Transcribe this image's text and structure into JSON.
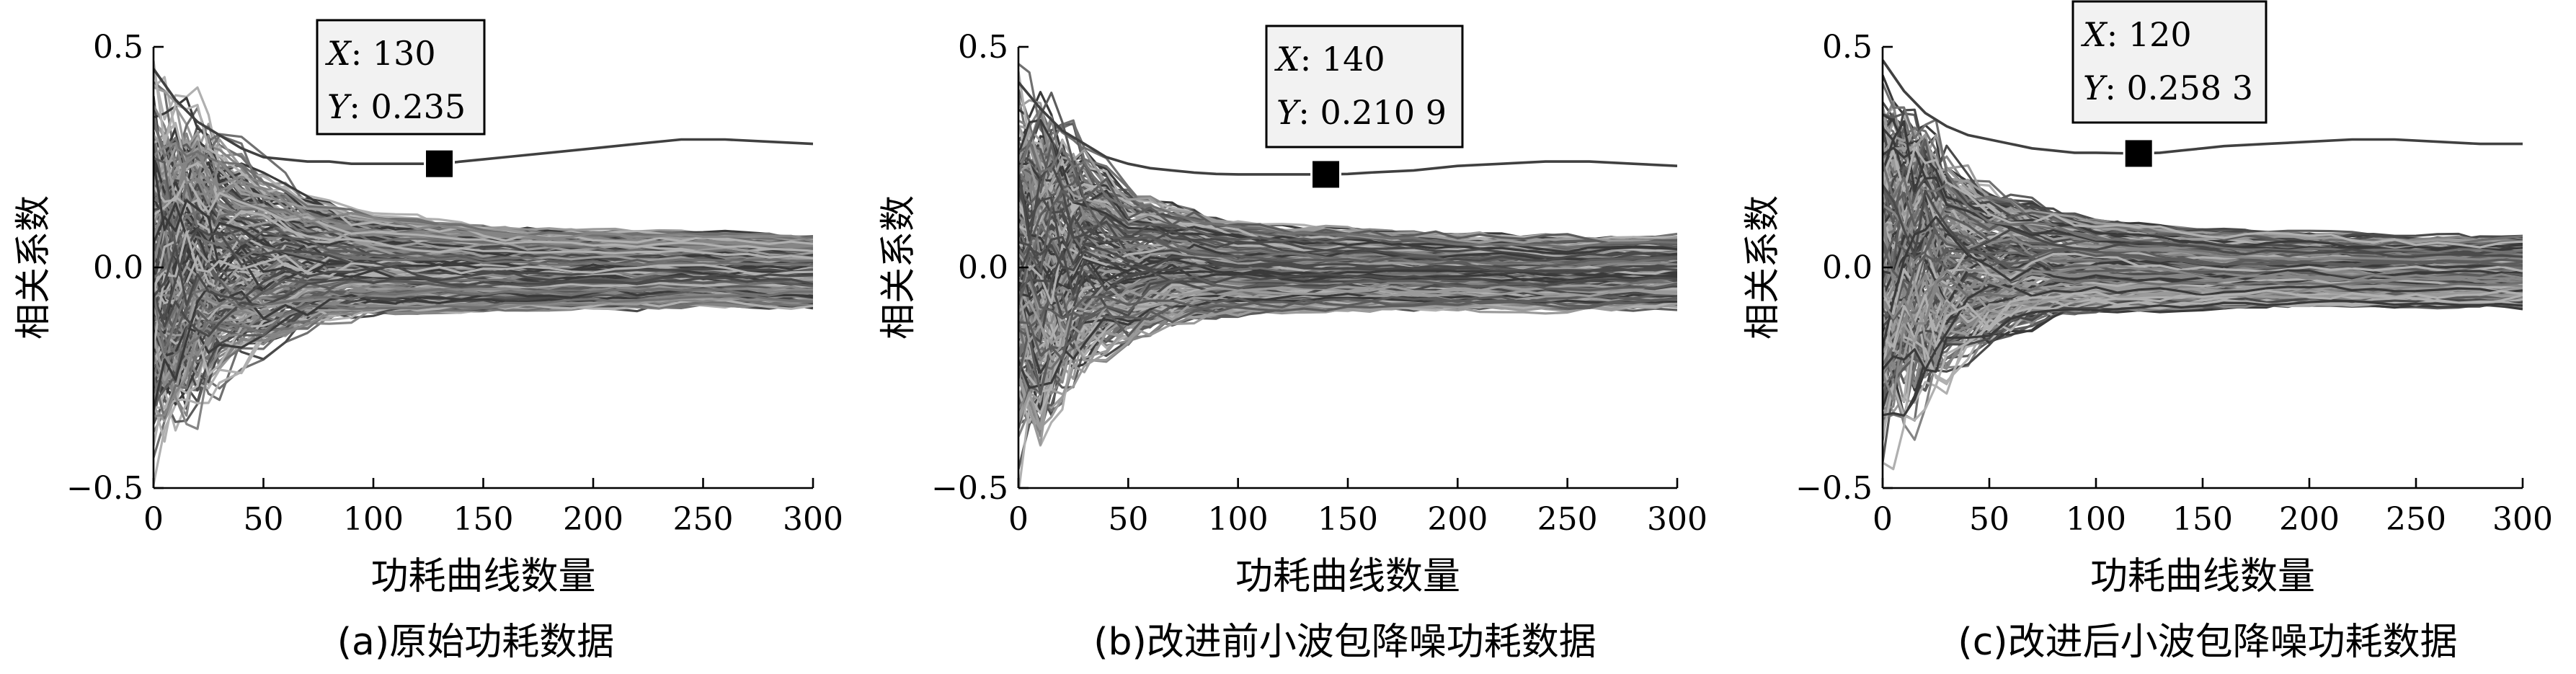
{
  "figure": {
    "panels": [
      {
        "caption": "(a)原始功耗数据",
        "ylabel": "相关系数",
        "xlabel": "功耗曲线数量",
        "annotation": {
          "x_label": "X",
          "x_value": "130",
          "y_label": "Y",
          "y_value": "0.235"
        }
      },
      {
        "caption": "(b)改进前小波包降噪功耗数据",
        "ylabel": "相关系数",
        "xlabel": "功耗曲线数量",
        "annotation": {
          "x_label": "X",
          "x_value": "140",
          "y_label": "Y",
          "y_value": "0.210 9"
        }
      },
      {
        "caption": "(c)改进后小波包降噪功耗数据",
        "ylabel": "相关系数",
        "xlabel": "功耗曲线数量",
        "annotation": {
          "x_label": "X",
          "x_value": "120",
          "y_label": "Y",
          "y_value": "0.258 3"
        }
      }
    ]
  },
  "chart_data": [
    {
      "type": "line",
      "xlabel": "功耗曲线数量",
      "ylabel": "相关系数",
      "xlim": [
        0,
        300
      ],
      "ylim": [
        -0.5,
        0.5
      ],
      "xticks": [
        0,
        50,
        100,
        150,
        200,
        250,
        300
      ],
      "yticks": [
        "0.5",
        "0.0",
        "−0.5"
      ],
      "yticks_values": [
        0.5,
        0.0,
        -0.5
      ],
      "grid": false,
      "series_count": 256,
      "series_colors": [
        "#3a3a3a",
        "#4a4a4a",
        "#5c5c5c",
        "#707070",
        "#858585",
        "#9a9a9a",
        "#b0b0b0"
      ],
      "highlight_series": {
        "x": [
          0,
          10,
          20,
          30,
          40,
          50,
          60,
          70,
          80,
          90,
          100,
          110,
          120,
          130,
          140,
          150,
          160,
          180,
          200,
          220,
          240,
          260,
          280,
          300
        ],
        "y": [
          0.45,
          0.38,
          0.33,
          0.3,
          0.27,
          0.25,
          0.245,
          0.24,
          0.24,
          0.235,
          0.235,
          0.235,
          0.235,
          0.235,
          0.24,
          0.245,
          0.25,
          0.26,
          0.27,
          0.28,
          0.29,
          0.29,
          0.285,
          0.28
        ]
      },
      "marker": {
        "x": 130,
        "y": 0.235
      },
      "envelope": {
        "x": [
          0,
          10,
          20,
          30,
          50,
          75,
          100,
          130,
          160,
          200,
          250,
          300
        ],
        "upper": [
          0.5,
          0.5,
          0.48,
          0.42,
          0.32,
          0.24,
          0.2,
          0.18,
          0.16,
          0.15,
          0.14,
          0.13
        ],
        "lower": [
          -0.5,
          -0.5,
          -0.45,
          -0.38,
          -0.3,
          -0.22,
          -0.19,
          -0.18,
          -0.17,
          -0.16,
          -0.15,
          -0.15
        ]
      }
    },
    {
      "type": "line",
      "xlabel": "功耗曲线数量",
      "ylabel": "相关系数",
      "xlim": [
        0,
        300
      ],
      "ylim": [
        -0.5,
        0.5
      ],
      "xticks": [
        0,
        50,
        100,
        150,
        200,
        250,
        300
      ],
      "yticks": [
        "0.5",
        "0.0",
        "−0.5"
      ],
      "yticks_values": [
        0.5,
        0.0,
        -0.5
      ],
      "grid": false,
      "series_count": 256,
      "series_colors": [
        "#3a3a3a",
        "#4a4a4a",
        "#5c5c5c",
        "#707070",
        "#858585",
        "#9a9a9a",
        "#b0b0b0"
      ],
      "highlight_series": {
        "x": [
          0,
          10,
          20,
          30,
          40,
          50,
          60,
          70,
          80,
          90,
          100,
          110,
          120,
          130,
          140,
          150,
          160,
          180,
          200,
          220,
          240,
          260,
          280,
          300
        ],
        "y": [
          0.42,
          0.36,
          0.31,
          0.28,
          0.25,
          0.235,
          0.225,
          0.22,
          0.215,
          0.212,
          0.211,
          0.211,
          0.211,
          0.211,
          0.2109,
          0.212,
          0.215,
          0.22,
          0.23,
          0.235,
          0.24,
          0.24,
          0.235,
          0.23
        ]
      },
      "marker": {
        "x": 140,
        "y": 0.2109
      },
      "envelope": {
        "x": [
          0,
          10,
          20,
          30,
          50,
          75,
          100,
          130,
          160,
          200,
          250,
          300
        ],
        "upper": [
          0.5,
          0.5,
          0.45,
          0.38,
          0.28,
          0.22,
          0.18,
          0.16,
          0.15,
          0.14,
          0.13,
          0.13
        ],
        "lower": [
          -0.5,
          -0.5,
          -0.42,
          -0.35,
          -0.27,
          -0.2,
          -0.18,
          -0.17,
          -0.16,
          -0.16,
          -0.16,
          -0.15
        ]
      }
    },
    {
      "type": "line",
      "xlabel": "功耗曲线数量",
      "ylabel": "相关系数",
      "xlim": [
        0,
        300
      ],
      "ylim": [
        -0.5,
        0.5
      ],
      "xticks": [
        0,
        50,
        100,
        150,
        200,
        250,
        300
      ],
      "yticks": [
        "0.5",
        "0.0",
        "−0.5"
      ],
      "yticks_values": [
        0.5,
        0.0,
        -0.5
      ],
      "grid": false,
      "series_count": 256,
      "series_colors": [
        "#3a3a3a",
        "#4a4a4a",
        "#5c5c5c",
        "#707070",
        "#858585",
        "#9a9a9a",
        "#b0b0b0"
      ],
      "highlight_series": {
        "x": [
          0,
          10,
          20,
          30,
          40,
          50,
          60,
          70,
          80,
          90,
          100,
          110,
          120,
          130,
          140,
          150,
          160,
          180,
          200,
          220,
          240,
          260,
          280,
          300
        ],
        "y": [
          0.47,
          0.4,
          0.35,
          0.32,
          0.3,
          0.29,
          0.28,
          0.27,
          0.265,
          0.26,
          0.26,
          0.259,
          0.2583,
          0.26,
          0.265,
          0.27,
          0.275,
          0.28,
          0.285,
          0.29,
          0.29,
          0.285,
          0.28,
          0.28
        ]
      },
      "marker": {
        "x": 120,
        "y": 0.2583
      },
      "envelope": {
        "x": [
          0,
          10,
          20,
          30,
          50,
          75,
          100,
          130,
          160,
          200,
          250,
          300
        ],
        "upper": [
          0.5,
          0.5,
          0.47,
          0.4,
          0.3,
          0.23,
          0.19,
          0.17,
          0.15,
          0.14,
          0.13,
          0.13
        ],
        "lower": [
          -0.5,
          -0.5,
          -0.44,
          -0.37,
          -0.28,
          -0.21,
          -0.18,
          -0.17,
          -0.16,
          -0.15,
          -0.15,
          -0.15
        ]
      }
    }
  ]
}
